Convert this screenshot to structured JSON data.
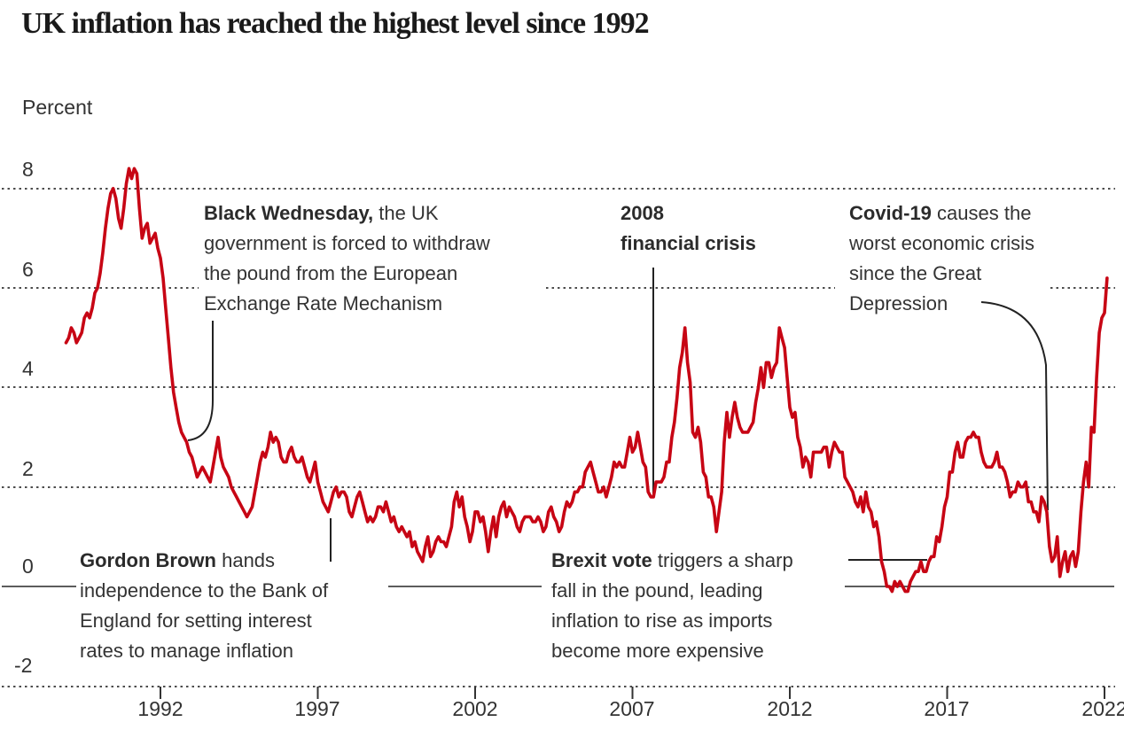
{
  "header": {
    "title": "UK inflation has reached the highest level since 1992"
  },
  "chart_data": {
    "type": "line",
    "title": "UK inflation has reached the highest level since 1992",
    "unit_label": "Percent",
    "line_color": "#c70514",
    "grid_color": "#333333",
    "zero_line_color": "#444444",
    "leader_line_color": "#222222",
    "y_axis": {
      "labels": [
        "8",
        "6",
        "4",
        "2",
        "0",
        "-2"
      ],
      "range": [
        -2,
        8
      ],
      "gridlines": "dotted, zero line solid"
    },
    "x_axis": {
      "labels": [
        "1992",
        "1997",
        "2002",
        "2007",
        "2012",
        "2017",
        "2022"
      ],
      "range_years": [
        1989,
        2022.2
      ]
    },
    "series": [
      {
        "name": "UK inflation rate (percent)",
        "frequency": "monthly",
        "start_year": 1989,
        "start_month": 1,
        "values": [
          4.9,
          5.0,
          5.2,
          5.1,
          4.9,
          5.0,
          5.1,
          5.4,
          5.5,
          5.4,
          5.6,
          5.9,
          6.0,
          6.3,
          6.7,
          7.2,
          7.6,
          7.9,
          8.0,
          7.8,
          7.4,
          7.2,
          7.6,
          8.1,
          8.4,
          8.2,
          8.4,
          8.3,
          7.6,
          7.0,
          7.2,
          7.3,
          6.9,
          7.0,
          7.1,
          6.8,
          6.6,
          6.2,
          5.6,
          5.0,
          4.4,
          3.9,
          3.6,
          3.3,
          3.1,
          3.0,
          2.9,
          2.7,
          2.6,
          2.4,
          2.2,
          2.3,
          2.4,
          2.3,
          2.2,
          2.1,
          2.4,
          2.7,
          3.0,
          2.6,
          2.4,
          2.3,
          2.2,
          2.0,
          1.9,
          1.8,
          1.7,
          1.6,
          1.5,
          1.4,
          1.5,
          1.6,
          1.9,
          2.2,
          2.5,
          2.7,
          2.6,
          2.8,
          3.1,
          2.9,
          3.0,
          2.9,
          2.6,
          2.5,
          2.5,
          2.7,
          2.8,
          2.6,
          2.5,
          2.5,
          2.6,
          2.4,
          2.2,
          2.1,
          2.3,
          2.5,
          2.1,
          1.9,
          1.7,
          1.6,
          1.5,
          1.7,
          1.9,
          2.0,
          1.8,
          1.9,
          1.9,
          1.8,
          1.5,
          1.4,
          1.6,
          1.8,
          1.9,
          1.7,
          1.5,
          1.3,
          1.4,
          1.3,
          1.4,
          1.6,
          1.6,
          1.5,
          1.7,
          1.5,
          1.3,
          1.4,
          1.2,
          1.1,
          1.2,
          1.1,
          1.0,
          1.1,
          0.8,
          0.9,
          0.7,
          0.6,
          0.5,
          0.8,
          1.0,
          0.6,
          0.7,
          0.9,
          1.0,
          0.9,
          0.9,
          0.8,
          1.0,
          1.2,
          1.7,
          1.9,
          1.6,
          1.8,
          1.4,
          1.2,
          0.9,
          1.1,
          1.5,
          1.5,
          1.3,
          1.4,
          1.1,
          0.7,
          1.1,
          1.4,
          1.0,
          1.4,
          1.6,
          1.7,
          1.4,
          1.6,
          1.5,
          1.4,
          1.2,
          1.1,
          1.3,
          1.4,
          1.4,
          1.4,
          1.3,
          1.3,
          1.4,
          1.3,
          1.1,
          1.2,
          1.5,
          1.6,
          1.4,
          1.3,
          1.1,
          1.2,
          1.5,
          1.7,
          1.6,
          1.7,
          1.9,
          1.9,
          2.0,
          2.0,
          2.3,
          2.4,
          2.5,
          2.3,
          2.1,
          1.9,
          1.9,
          2.0,
          1.8,
          2.0,
          2.2,
          2.5,
          2.4,
          2.5,
          2.4,
          2.4,
          2.7,
          3.0,
          2.7,
          2.8,
          3.1,
          2.8,
          2.5,
          2.4,
          1.9,
          1.8,
          1.8,
          2.1,
          2.1,
          2.1,
          2.2,
          2.5,
          2.5,
          3.0,
          3.3,
          3.8,
          4.4,
          4.7,
          5.2,
          4.5,
          4.1,
          3.1,
          3.0,
          3.2,
          2.9,
          2.3,
          2.2,
          1.8,
          1.8,
          1.6,
          1.1,
          1.5,
          1.9,
          2.9,
          3.5,
          3.0,
          3.4,
          3.7,
          3.4,
          3.2,
          3.1,
          3.1,
          3.1,
          3.2,
          3.3,
          3.7,
          4.0,
          4.4,
          4.0,
          4.5,
          4.5,
          4.2,
          4.4,
          4.5,
          5.2,
          5.0,
          4.8,
          4.2,
          3.6,
          3.4,
          3.5,
          3.0,
          2.8,
          2.4,
          2.6,
          2.5,
          2.2,
          2.7,
          2.7,
          2.7,
          2.7,
          2.8,
          2.8,
          2.4,
          2.7,
          2.9,
          2.8,
          2.7,
          2.7,
          2.2,
          2.1,
          2.0,
          1.9,
          1.7,
          1.6,
          1.8,
          1.5,
          1.9,
          1.6,
          1.5,
          1.2,
          1.3,
          1.0,
          0.5,
          0.3,
          0.0,
          0.0,
          -0.1,
          0.1,
          0.0,
          0.1,
          0.0,
          -0.1,
          -0.1,
          0.1,
          0.2,
          0.3,
          0.3,
          0.5,
          0.3,
          0.3,
          0.5,
          0.6,
          0.6,
          1.0,
          0.9,
          1.2,
          1.6,
          1.8,
          2.3,
          2.3,
          2.7,
          2.9,
          2.6,
          2.6,
          2.9,
          3.0,
          3.0,
          3.1,
          3.0,
          3.0,
          2.7,
          2.5,
          2.4,
          2.4,
          2.4,
          2.5,
          2.7,
          2.4,
          2.4,
          2.3,
          2.1,
          1.8,
          1.9,
          1.9,
          2.1,
          2.0,
          2.0,
          2.1,
          1.7,
          1.7,
          1.5,
          1.5,
          1.3,
          1.8,
          1.7,
          1.5,
          0.8,
          0.5,
          0.6,
          1.0,
          0.2,
          0.5,
          0.7,
          0.3,
          0.6,
          0.7,
          0.4,
          0.7,
          1.5,
          2.1,
          2.5,
          2.0,
          3.2,
          3.1,
          4.2,
          5.1,
          5.4,
          5.5,
          6.2
        ]
      }
    ],
    "annotations": [
      {
        "id": "black-wednesday",
        "lead": "Black Wednesday,",
        "rest": " the UK\ngovernment is forced to withdraw\nthe pound from the European\nExchange Rate Mechanism"
      },
      {
        "id": "financial-crisis-2008",
        "lead": "2008\nfinancial crisis",
        "rest": ""
      },
      {
        "id": "covid-19",
        "lead": "Covid-19",
        "rest": " causes the\nworst economic crisis\nsince the Great\nDepression"
      },
      {
        "id": "gordon-brown",
        "lead": "Gordon Brown",
        "rest": " hands\nindependence to the Bank of\nEngland for setting interest\nrates to manage inflation"
      },
      {
        "id": "brexit-vote",
        "lead": "Brexit vote",
        "rest": " triggers a sharp\nfall in the pound, leading\ninflation to rise as imports\nbecome more expensive"
      }
    ]
  }
}
